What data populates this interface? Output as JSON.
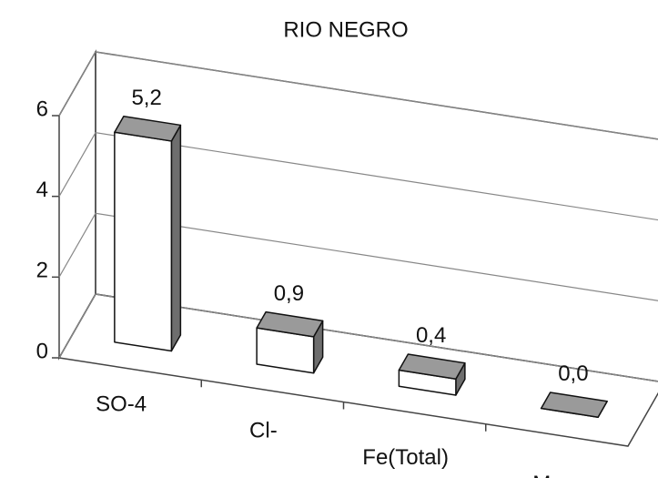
{
  "chart_data": {
    "type": "bar3d",
    "title": "RIO NEGRO",
    "categories": [
      "SO-4",
      "Cl-",
      "Fe(Total)",
      "Mn"
    ],
    "values": [
      5.2,
      0.9,
      0.4,
      0.0
    ],
    "value_labels": [
      "5,2",
      "0,9",
      "0,4",
      "0,0"
    ],
    "ylim": [
      0,
      6
    ],
    "yticks": [
      0,
      2,
      4,
      6
    ],
    "grid": true,
    "colors": {
      "front": "#ffffff",
      "top": "#9a9a9a",
      "side": "#6e6e6e"
    }
  }
}
